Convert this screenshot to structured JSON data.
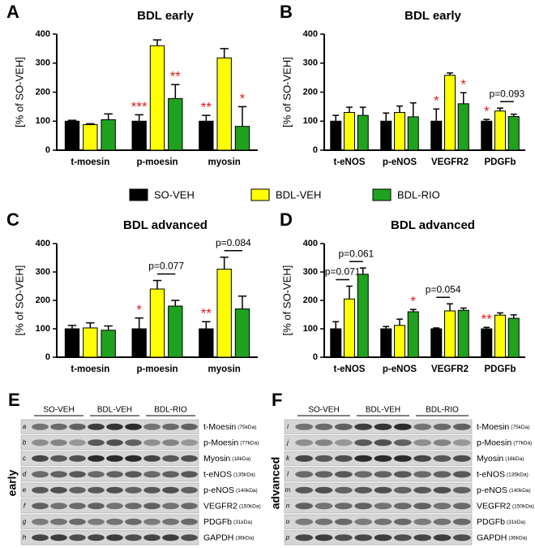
{
  "chart_data": [
    {
      "type": "bar",
      "letter": "A",
      "title": "BDL early",
      "ylabel": "[% of SO-VEH]",
      "categories": [
        "t-moesin",
        "p-moesin",
        "myosin"
      ],
      "ylim": [
        0,
        400
      ],
      "yticks": [
        0,
        100,
        200,
        300,
        400
      ],
      "series": [
        {
          "name": "SO-VEH",
          "color": "#000000",
          "values": [
            100,
            100,
            100
          ],
          "errors": [
            3,
            22,
            20
          ],
          "significance": [
            null,
            "***",
            "**"
          ]
        },
        {
          "name": "BDL-VEH",
          "color": "#ffff00",
          "values": [
            88,
            360,
            318
          ],
          "errors": [
            3,
            20,
            32
          ],
          "significance": [
            null,
            null,
            null
          ]
        },
        {
          "name": "BDL-RIO",
          "color": "#1fa21f",
          "values": [
            105,
            178,
            82
          ],
          "errors": [
            20,
            48,
            68
          ],
          "significance": [
            null,
            "**",
            "*"
          ]
        }
      ],
      "comparisons": []
    },
    {
      "type": "bar",
      "letter": "B",
      "title": "BDL early",
      "ylabel": "[% of SO-VEH]",
      "categories": [
        "t-eNOS",
        "p-eNOS",
        "VEGFR2",
        "PDGFb"
      ],
      "ylim": [
        0,
        400
      ],
      "yticks": [
        0,
        100,
        200,
        300,
        400
      ],
      "series": [
        {
          "name": "SO-VEH",
          "color": "#000000",
          "values": [
            100,
            100,
            100,
            100
          ],
          "errors": [
            20,
            28,
            42,
            6
          ],
          "significance": [
            null,
            null,
            "*",
            "*"
          ]
        },
        {
          "name": "BDL-VEH",
          "color": "#ffff00",
          "values": [
            130,
            130,
            258,
            135
          ],
          "errors": [
            18,
            22,
            8,
            10
          ],
          "significance": [
            null,
            null,
            null,
            null
          ]
        },
        {
          "name": "BDL-RIO",
          "color": "#1fa21f",
          "values": [
            120,
            115,
            160,
            116
          ],
          "errors": [
            28,
            48,
            38,
            8
          ],
          "significance": [
            null,
            null,
            "*",
            null
          ]
        }
      ],
      "comparisons": [
        {
          "label": "p=0.093",
          "category": "PDGFb",
          "from": "BDL-VEH",
          "to": "BDL-RIO"
        }
      ]
    },
    {
      "type": "bar",
      "letter": "C",
      "title": "BDL advanced",
      "ylabel": "[% of SO-VEH]",
      "categories": [
        "t-moesin",
        "p-moesin",
        "myosin"
      ],
      "ylim": [
        0,
        400
      ],
      "yticks": [
        0,
        100,
        200,
        300,
        400
      ],
      "series": [
        {
          "name": "SO-VEH",
          "color": "#000000",
          "values": [
            100,
            100,
            100
          ],
          "errors": [
            12,
            38,
            25
          ],
          "significance": [
            null,
            "*",
            "**"
          ]
        },
        {
          "name": "BDL-VEH",
          "color": "#ffff00",
          "values": [
            103,
            240,
            310
          ],
          "errors": [
            18,
            30,
            42
          ],
          "significance": [
            null,
            null,
            null
          ]
        },
        {
          "name": "BDL-RIO",
          "color": "#1fa21f",
          "values": [
            95,
            180,
            170
          ],
          "errors": [
            15,
            20,
            45
          ],
          "significance": [
            null,
            null,
            null
          ]
        }
      ],
      "comparisons": [
        {
          "label": "p=0.077",
          "category": "p-moesin",
          "from": "BDL-VEH",
          "to": "BDL-RIO"
        },
        {
          "label": "p=0.084",
          "category": "myosin",
          "from": "BDL-VEH",
          "to": "BDL-RIO"
        }
      ]
    },
    {
      "type": "bar",
      "letter": "D",
      "title": "BDL advanced",
      "ylabel": "[% of SO-VEH]",
      "categories": [
        "t-eNOS",
        "p-eNOS",
        "VEGFR2",
        "PDGFb"
      ],
      "ylim": [
        0,
        400
      ],
      "yticks": [
        0,
        100,
        200,
        300,
        400
      ],
      "series": [
        {
          "name": "SO-VEH",
          "color": "#000000",
          "values": [
            100,
            100,
            100,
            100
          ],
          "errors": [
            25,
            8,
            3,
            5
          ],
          "significance": [
            null,
            null,
            null,
            "**"
          ]
        },
        {
          "name": "BDL-VEH",
          "color": "#ffff00",
          "values": [
            205,
            112,
            163,
            148
          ],
          "errors": [
            45,
            22,
            25,
            8
          ],
          "significance": [
            null,
            null,
            null,
            null
          ]
        },
        {
          "name": "BDL-RIO",
          "color": "#1fa21f",
          "values": [
            292,
            160,
            165,
            137
          ],
          "errors": [
            22,
            8,
            8,
            12
          ],
          "significance": [
            null,
            "*",
            null,
            null
          ]
        }
      ],
      "comparisons": [
        {
          "label": "p=0.071",
          "category": "t-eNOS",
          "from": "SO-VEH",
          "to": "BDL-VEH"
        },
        {
          "label": "p=0.061",
          "category": "t-eNOS",
          "from": "BDL-VEH",
          "to": "BDL-RIO"
        },
        {
          "label": "p=0.054",
          "category": "VEGFR2",
          "from": "SO-VEH",
          "to": "BDL-VEH"
        }
      ]
    }
  ],
  "blots": [
    {
      "letter": "E",
      "side": "early",
      "groups": [
        "SO-VEH",
        "BDL-VEH",
        "BDL-RIO"
      ],
      "rows": [
        {
          "id": "a",
          "name": "t-Moesin",
          "size": "(75kDa)"
        },
        {
          "id": "b",
          "name": "p-Moesin",
          "size": "(77kDa)"
        },
        {
          "id": "c",
          "name": "Myosin",
          "size": "(18kDa)"
        },
        {
          "id": "d",
          "name": "t-eNOS",
          "size": "(135kDa)"
        },
        {
          "id": "e",
          "name": "p-eNOS",
          "size": "(140kDa)"
        },
        {
          "id": "f",
          "name": "VEGFR2",
          "size": "(150kDa)"
        },
        {
          "id": "g",
          "name": "PDGFb",
          "size": "(31kDa)"
        },
        {
          "id": "h",
          "name": "GAPDH",
          "size": "(36kDa)"
        }
      ]
    },
    {
      "letter": "F",
      "side": "advanced",
      "groups": [
        "SO-VEH",
        "BDL-VEH",
        "BDL-RIO"
      ],
      "rows": [
        {
          "id": "i",
          "name": "t-Moesin",
          "size": "(75kDa)"
        },
        {
          "id": "j",
          "name": "p-Moesin",
          "size": "(77kDa)"
        },
        {
          "id": "k",
          "name": "Myosin",
          "size": "(18kDa)"
        },
        {
          "id": "l",
          "name": "t-eNOS",
          "size": "(135kDa)"
        },
        {
          "id": "m",
          "name": "p-eNOS",
          "size": "(140kDa)"
        },
        {
          "id": "n",
          "name": "VEGFR2",
          "size": "(150kDa)"
        },
        {
          "id": "o",
          "name": "PDGFb",
          "size": "(31kDa)"
        },
        {
          "id": "p",
          "name": "GAPDH",
          "size": "(36kDa)"
        }
      ]
    }
  ]
}
